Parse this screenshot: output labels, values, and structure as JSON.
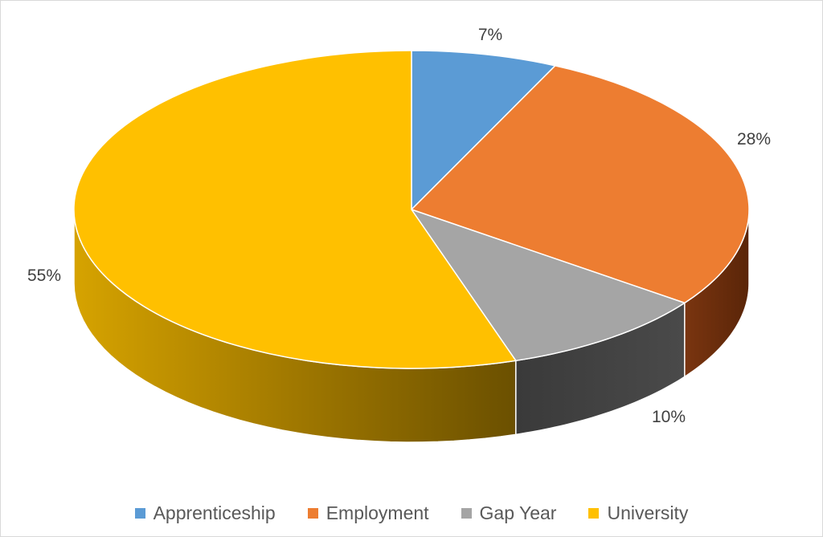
{
  "chart_data": {
    "type": "pie",
    "title": "",
    "categories": [
      "Apprenticeship",
      "Employment",
      "Gap Year",
      "University"
    ],
    "values": [
      7,
      28,
      10,
      55
    ],
    "data_labels": [
      "7%",
      "28%",
      "10%",
      "55%"
    ],
    "colors": [
      "#5b9bd5",
      "#ed7d31",
      "#a5a5a5",
      "#ffc000"
    ],
    "legend_position": "bottom",
    "style": "3d-pie"
  }
}
